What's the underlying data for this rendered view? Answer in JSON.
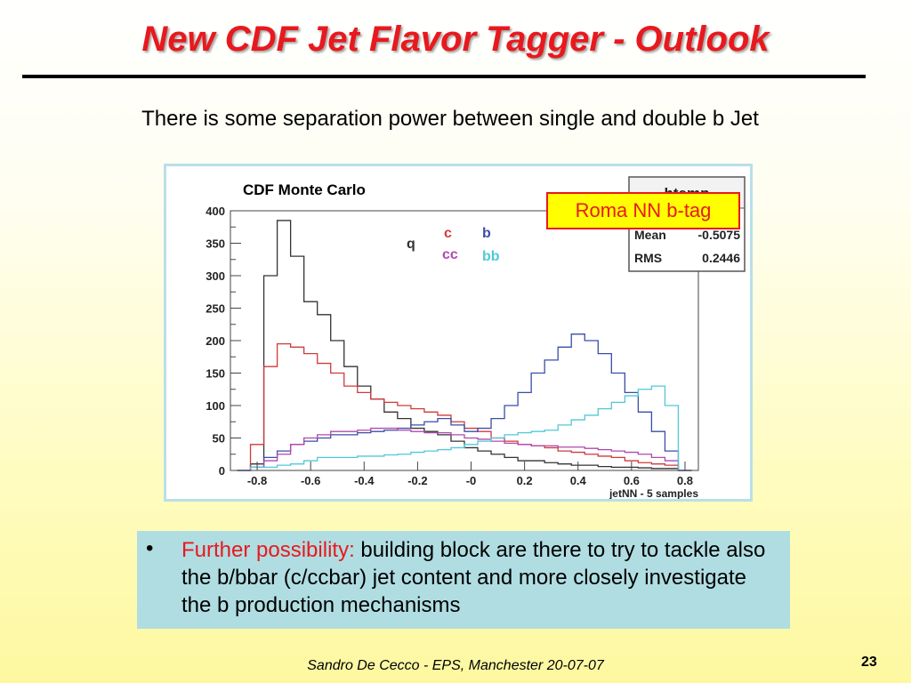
{
  "slide": {
    "title": "New CDF Jet Flavor Tagger - Outlook",
    "subtitle": "There is some separation power between single and double b Jet",
    "callout": "Roma NN b-tag",
    "bullet": {
      "highlight": "Further possibility:",
      "text": " building block are there to try to tackle also the b/bbar (c/ccbar) jet content and more closely  investigate the b production mechanisms"
    },
    "footer": "Sandro De Cecco  -  EPS, Manchester 20-07-07",
    "page_number": "23"
  },
  "chart_data": {
    "type": "line",
    "title": "CDF Monte Carlo",
    "xlabel": "jetNN - 5 samples",
    "ylabel": "",
    "xlim": [
      -0.9,
      0.85
    ],
    "ylim": [
      0,
      400
    ],
    "x_ticks": [
      "-0.8",
      "-0.6",
      "-0.4",
      "-0.2",
      "-0",
      "0.2",
      "0.4",
      "0.6",
      "0.8"
    ],
    "y_ticks": [
      "0",
      "50",
      "100",
      "150",
      "200",
      "250",
      "300",
      "350",
      "400"
    ],
    "x_tick_values": [
      -0.8,
      -0.6,
      -0.4,
      -0.2,
      0,
      0.2,
      0.4,
      0.6,
      0.8
    ],
    "y_tick_values": [
      0,
      50,
      100,
      150,
      200,
      250,
      300,
      350,
      400
    ],
    "stats_box": {
      "name": "htemp",
      "rows": [
        {
          "label": "Mean",
          "value": "-0.5075"
        },
        {
          "label": "RMS",
          "value": "0.2446"
        }
      ]
    },
    "legend_labels": [
      {
        "text": "q",
        "color": "#333333"
      },
      {
        "text": "c",
        "color": "#d03a3a"
      },
      {
        "text": "b",
        "color": "#3a4ea8"
      },
      {
        "text": "cc",
        "color": "#b048b0"
      },
      {
        "text": "bb",
        "color": "#50c8d8"
      }
    ],
    "x": [
      -0.85,
      -0.8,
      -0.75,
      -0.7,
      -0.65,
      -0.6,
      -0.55,
      -0.5,
      -0.45,
      -0.4,
      -0.35,
      -0.3,
      -0.25,
      -0.2,
      -0.15,
      -0.1,
      -0.05,
      0.0,
      0.05,
      0.1,
      0.15,
      0.2,
      0.25,
      0.3,
      0.35,
      0.4,
      0.45,
      0.5,
      0.55,
      0.6,
      0.65,
      0.7,
      0.75,
      0.8
    ],
    "series": [
      {
        "color": "#333333",
        "values": [
          0,
          10,
          300,
          385,
          330,
          260,
          240,
          200,
          160,
          130,
          110,
          90,
          80,
          65,
          60,
          55,
          45,
          35,
          30,
          25,
          20,
          15,
          15,
          12,
          10,
          8,
          8,
          6,
          5,
          5,
          4,
          3,
          3,
          0
        ]
      },
      {
        "color": "#d03a3a",
        "values": [
          0,
          40,
          160,
          195,
          190,
          180,
          165,
          150,
          130,
          120,
          110,
          105,
          100,
          95,
          90,
          85,
          75,
          65,
          60,
          50,
          45,
          40,
          38,
          35,
          30,
          28,
          25,
          22,
          20,
          15,
          12,
          10,
          8,
          0
        ]
      },
      {
        "color": "#3a4ea8",
        "values": [
          0,
          5,
          20,
          30,
          40,
          45,
          50,
          55,
          55,
          58,
          60,
          62,
          65,
          70,
          75,
          80,
          70,
          60,
          65,
          80,
          100,
          120,
          150,
          170,
          190,
          210,
          200,
          180,
          150,
          120,
          90,
          60,
          30,
          0
        ]
      },
      {
        "color": "#b048b0",
        "values": [
          0,
          5,
          15,
          25,
          40,
          50,
          55,
          60,
          60,
          62,
          65,
          65,
          62,
          60,
          58,
          58,
          55,
          50,
          48,
          45,
          42,
          40,
          38,
          38,
          36,
          36,
          34,
          32,
          30,
          28,
          25,
          20,
          15,
          0
        ]
      },
      {
        "color": "#50c8d8",
        "values": [
          0,
          5,
          5,
          8,
          10,
          15,
          20,
          20,
          20,
          22,
          22,
          24,
          25,
          28,
          30,
          32,
          35,
          40,
          45,
          50,
          55,
          58,
          60,
          62,
          70,
          78,
          85,
          95,
          105,
          115,
          125,
          130,
          100,
          0
        ]
      }
    ]
  }
}
